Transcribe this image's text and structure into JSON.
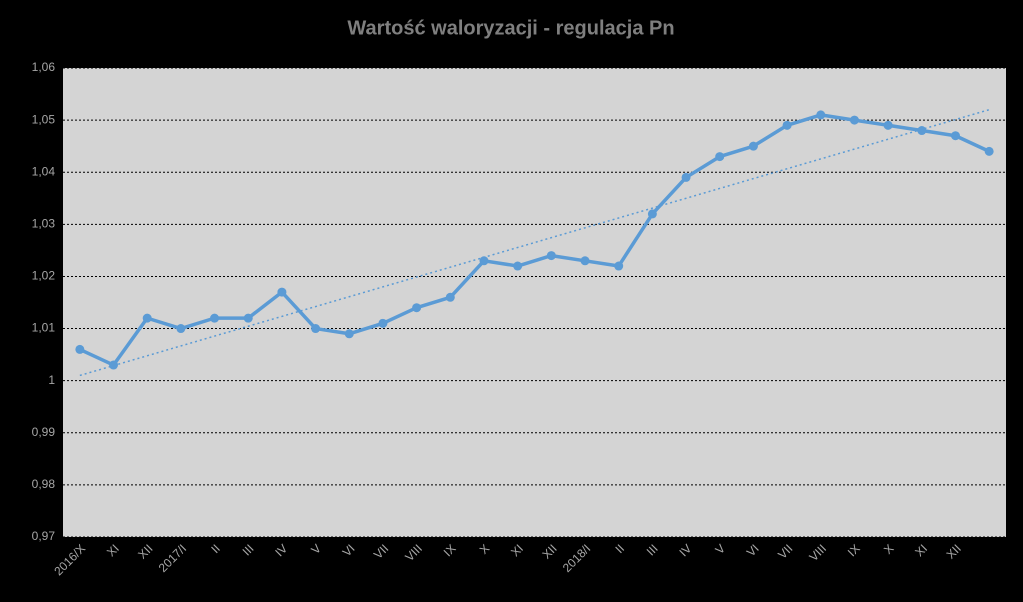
{
  "chart_data": {
    "type": "line",
    "title": "Wartość waloryzacji - regulacja Pn",
    "categories": [
      "2016/X",
      "XI",
      "XII",
      "2017/I",
      "II",
      "III",
      "IV",
      "V",
      "VI",
      "VII",
      "VIII",
      "IX",
      "X",
      "XI",
      "XII",
      "2018/I",
      "II",
      "III",
      "IV",
      "V",
      "VI",
      "VII",
      "VIII",
      "IX",
      "X",
      "XI",
      "XII",
      null
    ],
    "series": [
      {
        "color": "#5b9bd5",
        "values": [
          1.006,
          1.003,
          1.012,
          1.01,
          1.012,
          1.012,
          1.017,
          1.01,
          1.009,
          1.011,
          1.014,
          1.016,
          1.023,
          1.022,
          1.024,
          1.023,
          1.022,
          1.032,
          1.039,
          1.043,
          1.045,
          1.049,
          1.051,
          1.05,
          1.049,
          1.048,
          1.047,
          1.044
        ]
      }
    ],
    "trendline": {
      "color": "#5b9bd5",
      "values": [
        1.001,
        1.052
      ]
    },
    "ylim": [
      0.97,
      1.06
    ],
    "yticks": [
      {
        "value": 0.97,
        "label": "0,97"
      },
      {
        "value": 0.98,
        "label": "0,98"
      },
      {
        "value": 0.99,
        "label": "0,99"
      },
      1,
      {
        "value": 1.01,
        "label": "1,01"
      },
      {
        "value": 1.02,
        "label": "1,02"
      },
      {
        "value": 1.03,
        "label": "1,03"
      },
      {
        "value": 1.04,
        "label": "1,04"
      },
      {
        "value": 1.05,
        "label": "1,05"
      },
      {
        "value": 1.06,
        "label": "1,06"
      }
    ],
    "grid": true
  }
}
